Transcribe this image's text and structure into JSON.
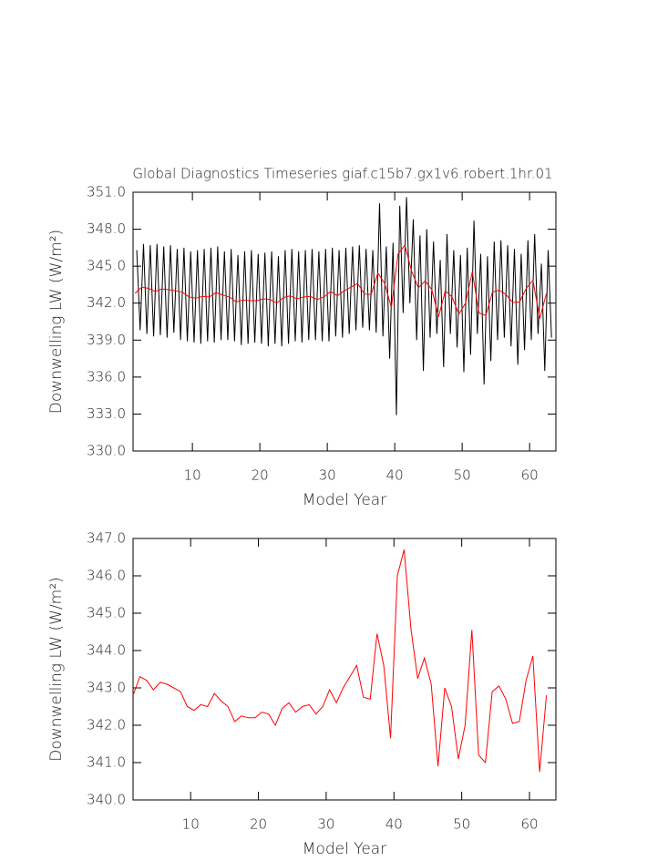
{
  "chart_data": [
    {
      "type": "line",
      "title": "Global Diagnostics Timeseries giaf.c15b7.gx1v6.robert.1hr.01",
      "xlabel": "Model Year",
      "ylabel": "Downwelling LW (W/m²)",
      "xlim": [
        1.2,
        63.9
      ],
      "ylim": [
        330,
        351
      ],
      "xticks": [
        10,
        20,
        30,
        40,
        50,
        60
      ],
      "yticks": [
        {
          "value": 330,
          "label": "330.0"
        },
        {
          "value": 333,
          "label": "333.0"
        },
        {
          "value": 336,
          "label": "336.0"
        },
        {
          "value": 339,
          "label": "339.0"
        },
        {
          "value": 342,
          "label": "342.0"
        },
        {
          "value": 345,
          "label": "345.0"
        },
        {
          "value": 348,
          "label": "348.0"
        },
        {
          "value": 351,
          "label": "351.0"
        }
      ],
      "series": [
        {
          "color": "#000000",
          "x": [
            1.75,
            2.25,
            2.75,
            3.25,
            3.75,
            4.25,
            4.75,
            5.25,
            5.75,
            6.25,
            6.75,
            7.25,
            7.75,
            8.25,
            8.75,
            9.25,
            9.75,
            10.25,
            10.75,
            11.25,
            11.75,
            12.25,
            12.75,
            13.25,
            13.75,
            14.25,
            14.75,
            15.25,
            15.75,
            16.25,
            16.75,
            17.25,
            17.75,
            18.25,
            18.75,
            19.25,
            19.75,
            20.25,
            20.75,
            21.25,
            21.75,
            22.25,
            22.75,
            23.25,
            23.75,
            24.25,
            24.75,
            25.25,
            25.75,
            26.25,
            26.75,
            27.25,
            27.75,
            28.25,
            28.75,
            29.25,
            29.75,
            30.25,
            30.75,
            31.25,
            31.75,
            32.25,
            32.75,
            33.25,
            33.75,
            34.25,
            34.75,
            35.25,
            35.75,
            36.25,
            36.75,
            37.25,
            37.75,
            38.25,
            38.75,
            39.25,
            39.75,
            40.25,
            40.75,
            41.25,
            41.75,
            42.25,
            42.75,
            43.25,
            43.75,
            44.25,
            44.75,
            45.25,
            45.75,
            46.25,
            46.75,
            47.25,
            47.75,
            48.25,
            48.75,
            49.25,
            49.75,
            50.25,
            50.75,
            51.25,
            51.75,
            52.25,
            52.75,
            53.25,
            53.75,
            54.25,
            54.75,
            55.25,
            55.75,
            56.25,
            56.75,
            57.25,
            57.75,
            58.25,
            58.75,
            59.25,
            59.75,
            60.25,
            60.75,
            61.25,
            61.75,
            62.25,
            62.75,
            63.25
          ],
          "values": [
            346.3,
            339.8,
            346.8,
            339.5,
            346.7,
            339.3,
            346.8,
            339.4,
            346.6,
            339.2,
            346.7,
            339.6,
            346.4,
            339.0,
            346.5,
            338.9,
            346.2,
            338.8,
            346.3,
            338.7,
            346.4,
            338.9,
            346.5,
            338.8,
            346.6,
            339.0,
            346.2,
            339.0,
            346.4,
            338.9,
            345.9,
            338.6,
            346.2,
            338.7,
            346.3,
            338.8,
            346.0,
            338.7,
            346.1,
            338.5,
            346.2,
            338.7,
            345.8,
            338.5,
            346.3,
            338.7,
            346.4,
            338.9,
            346.2,
            338.8,
            346.3,
            339.0,
            346.4,
            339.0,
            346.2,
            338.9,
            346.4,
            338.9,
            346.5,
            339.3,
            346.3,
            339.2,
            346.5,
            339.5,
            346.6,
            339.8,
            346.7,
            340.0,
            346.4,
            339.8,
            346.3,
            339.6,
            350.1,
            339.3,
            346.6,
            337.5,
            346.9,
            332.9,
            349.9,
            341.2,
            350.6,
            342.0,
            348.8,
            339.0,
            347.5,
            336.5,
            348.0,
            339.2,
            347.0,
            339.5,
            345.5,
            336.8,
            347.6,
            339.5,
            346.3,
            338.4,
            345.9,
            336.4,
            346.5,
            337.8,
            348.7,
            339.5,
            346.0,
            335.4,
            345.8,
            337.3,
            347.0,
            339.0,
            347.1,
            339.2,
            346.7,
            338.5,
            346.4,
            337.0,
            346.0,
            338.2,
            347.1,
            339.0,
            347.6,
            339.5,
            345.2,
            336.5,
            346.3,
            339.2
          ]
        },
        {
          "color": "#ff0000",
          "x": [
            1.5,
            2.5,
            3.5,
            4.5,
            5.5,
            6.5,
            7.5,
            8.5,
            9.5,
            10.5,
            11.5,
            12.5,
            13.5,
            14.5,
            15.5,
            16.5,
            17.5,
            18.5,
            19.5,
            20.5,
            21.5,
            22.5,
            23.5,
            24.5,
            25.5,
            26.5,
            27.5,
            28.5,
            29.5,
            30.5,
            31.5,
            32.5,
            33.5,
            34.5,
            35.5,
            36.5,
            37.5,
            38.5,
            39.5,
            40.5,
            41.5,
            42.5,
            43.5,
            44.5,
            45.5,
            46.5,
            47.5,
            48.5,
            49.5,
            50.5,
            51.5,
            52.5,
            53.5,
            54.5,
            55.5,
            56.5,
            57.5,
            58.5,
            59.5,
            60.5,
            61.5,
            62.5
          ],
          "values": [
            342.8,
            343.3,
            343.2,
            342.95,
            343.15,
            343.1,
            343.0,
            342.9,
            342.5,
            342.4,
            342.55,
            342.5,
            342.85,
            342.65,
            342.5,
            342.1,
            342.25,
            342.2,
            342.2,
            342.35,
            342.3,
            342.0,
            342.45,
            342.6,
            342.35,
            342.5,
            342.55,
            342.3,
            342.5,
            342.95,
            342.6,
            343.0,
            343.3,
            343.6,
            342.75,
            342.7,
            344.45,
            343.6,
            341.65,
            346.0,
            346.7,
            344.6,
            343.25,
            343.8,
            343.1,
            340.9,
            343.0,
            342.5,
            341.1,
            342.0,
            344.55,
            341.2,
            341.0,
            342.9,
            343.05,
            342.7,
            342.05,
            342.1,
            343.2,
            343.85,
            340.75,
            342.8
          ]
        }
      ]
    },
    {
      "type": "line",
      "xlabel": "Model Year",
      "ylabel": "Downwelling LW (W/m²)",
      "xlim": [
        1.5,
        63.9
      ],
      "ylim": [
        340,
        347
      ],
      "xticks": [
        10,
        20,
        30,
        40,
        50,
        60
      ],
      "yticks": [
        {
          "value": 340,
          "label": "340.0"
        },
        {
          "value": 341,
          "label": "341.0"
        },
        {
          "value": 342,
          "label": "342.0"
        },
        {
          "value": 343,
          "label": "343.0"
        },
        {
          "value": 344,
          "label": "344.0"
        },
        {
          "value": 345,
          "label": "345.0"
        },
        {
          "value": 346,
          "label": "346.0"
        },
        {
          "value": 347,
          "label": "347.0"
        }
      ],
      "series": [
        {
          "color": "#ff0000",
          "x": [
            1.5,
            2.5,
            3.5,
            4.5,
            5.5,
            6.5,
            7.5,
            8.5,
            9.5,
            10.5,
            11.5,
            12.5,
            13.5,
            14.5,
            15.5,
            16.5,
            17.5,
            18.5,
            19.5,
            20.5,
            21.5,
            22.5,
            23.5,
            24.5,
            25.5,
            26.5,
            27.5,
            28.5,
            29.5,
            30.5,
            31.5,
            32.5,
            33.5,
            34.5,
            35.5,
            36.5,
            37.5,
            38.5,
            39.5,
            40.5,
            41.5,
            42.5,
            43.5,
            44.5,
            45.5,
            46.5,
            47.5,
            48.5,
            49.5,
            50.5,
            51.5,
            52.5,
            53.5,
            54.5,
            55.5,
            56.5,
            57.5,
            58.5,
            59.5,
            60.5,
            61.5,
            62.5
          ],
          "values": [
            342.8,
            343.3,
            343.2,
            342.95,
            343.15,
            343.1,
            343.0,
            342.9,
            342.5,
            342.4,
            342.55,
            342.5,
            342.85,
            342.65,
            342.5,
            342.1,
            342.25,
            342.2,
            342.2,
            342.35,
            342.3,
            342.0,
            342.45,
            342.6,
            342.35,
            342.5,
            342.55,
            342.3,
            342.5,
            342.95,
            342.6,
            343.0,
            343.3,
            343.6,
            342.75,
            342.7,
            344.45,
            343.6,
            341.65,
            346.0,
            346.7,
            344.6,
            343.25,
            343.8,
            343.1,
            340.9,
            343.0,
            342.5,
            341.1,
            342.0,
            344.55,
            341.2,
            341.0,
            342.9,
            343.05,
            342.7,
            342.05,
            342.1,
            343.2,
            343.85,
            340.75,
            342.8
          ]
        }
      ]
    }
  ]
}
